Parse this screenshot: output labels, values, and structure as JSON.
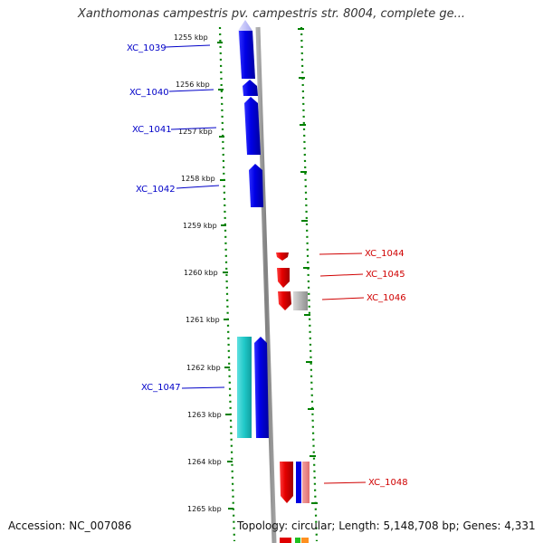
{
  "title": "Xanthomonas campestris pv. campestris str. 8004, complete ge...",
  "footer": {
    "accession": "Accession: NC_007086",
    "summary": "Topology: circular; Length: 5,148,708 bp; Genes: 4,331"
  },
  "ticks": [
    "1255 kbp",
    "1256 kbp",
    "1257 kbp",
    "1258 kbp",
    "1259 kbp",
    "1260 kbp",
    "1261 kbp",
    "1262 kbp",
    "1263 kbp",
    "1264 kbp",
    "1265 kbp"
  ],
  "genes_left": [
    "XC_1039",
    "XC_1040",
    "XC_1041",
    "XC_1042",
    "XC_1047"
  ],
  "genes_right": [
    "XC_1044",
    "XC_1045",
    "XC_1046",
    "XC_1048"
  ],
  "colors": {
    "forward": "#0000e0",
    "reverse": "#e00000",
    "other": "#20c8c8",
    "grey": "#a0a0a0",
    "grid": "#008000",
    "backbone": "#888888"
  }
}
